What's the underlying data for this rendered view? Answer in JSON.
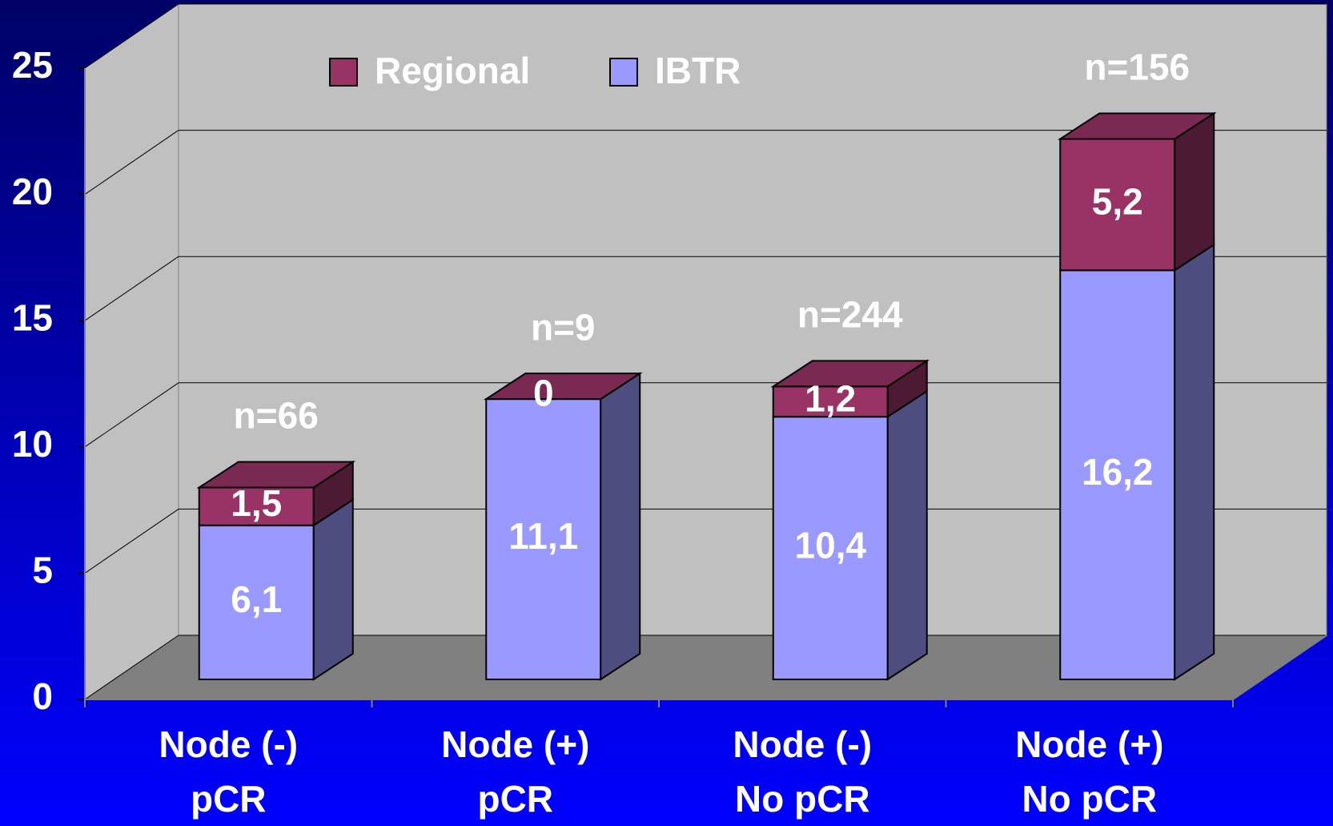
{
  "chart_data": {
    "type": "bar",
    "stacked": true,
    "categories": [
      [
        "Node (-)",
        "pCR"
      ],
      [
        "Node (+)",
        "pCR"
      ],
      [
        "Node (-)",
        "No pCR"
      ],
      [
        "Node (+)",
        "No pCR"
      ]
    ],
    "series": [
      {
        "name": "IBTR",
        "color": "#9999ff",
        "values": [
          6.1,
          11.1,
          10.4,
          16.2
        ],
        "value_labels": [
          "6,1",
          "11,1",
          "10,4",
          "16,2"
        ]
      },
      {
        "name": "Regional",
        "color": "#993366",
        "values": [
          1.5,
          0,
          1.2,
          5.2
        ],
        "value_labels": [
          "1,5",
          "0",
          "1,2",
          "5,2"
        ]
      }
    ],
    "annotations": [
      "n=66",
      "n=9",
      "n=244",
      "n=156"
    ],
    "ylim": [
      0,
      25
    ],
    "yticks": [
      0,
      5,
      10,
      15,
      20,
      25
    ],
    "grid": true,
    "legend": "top"
  }
}
